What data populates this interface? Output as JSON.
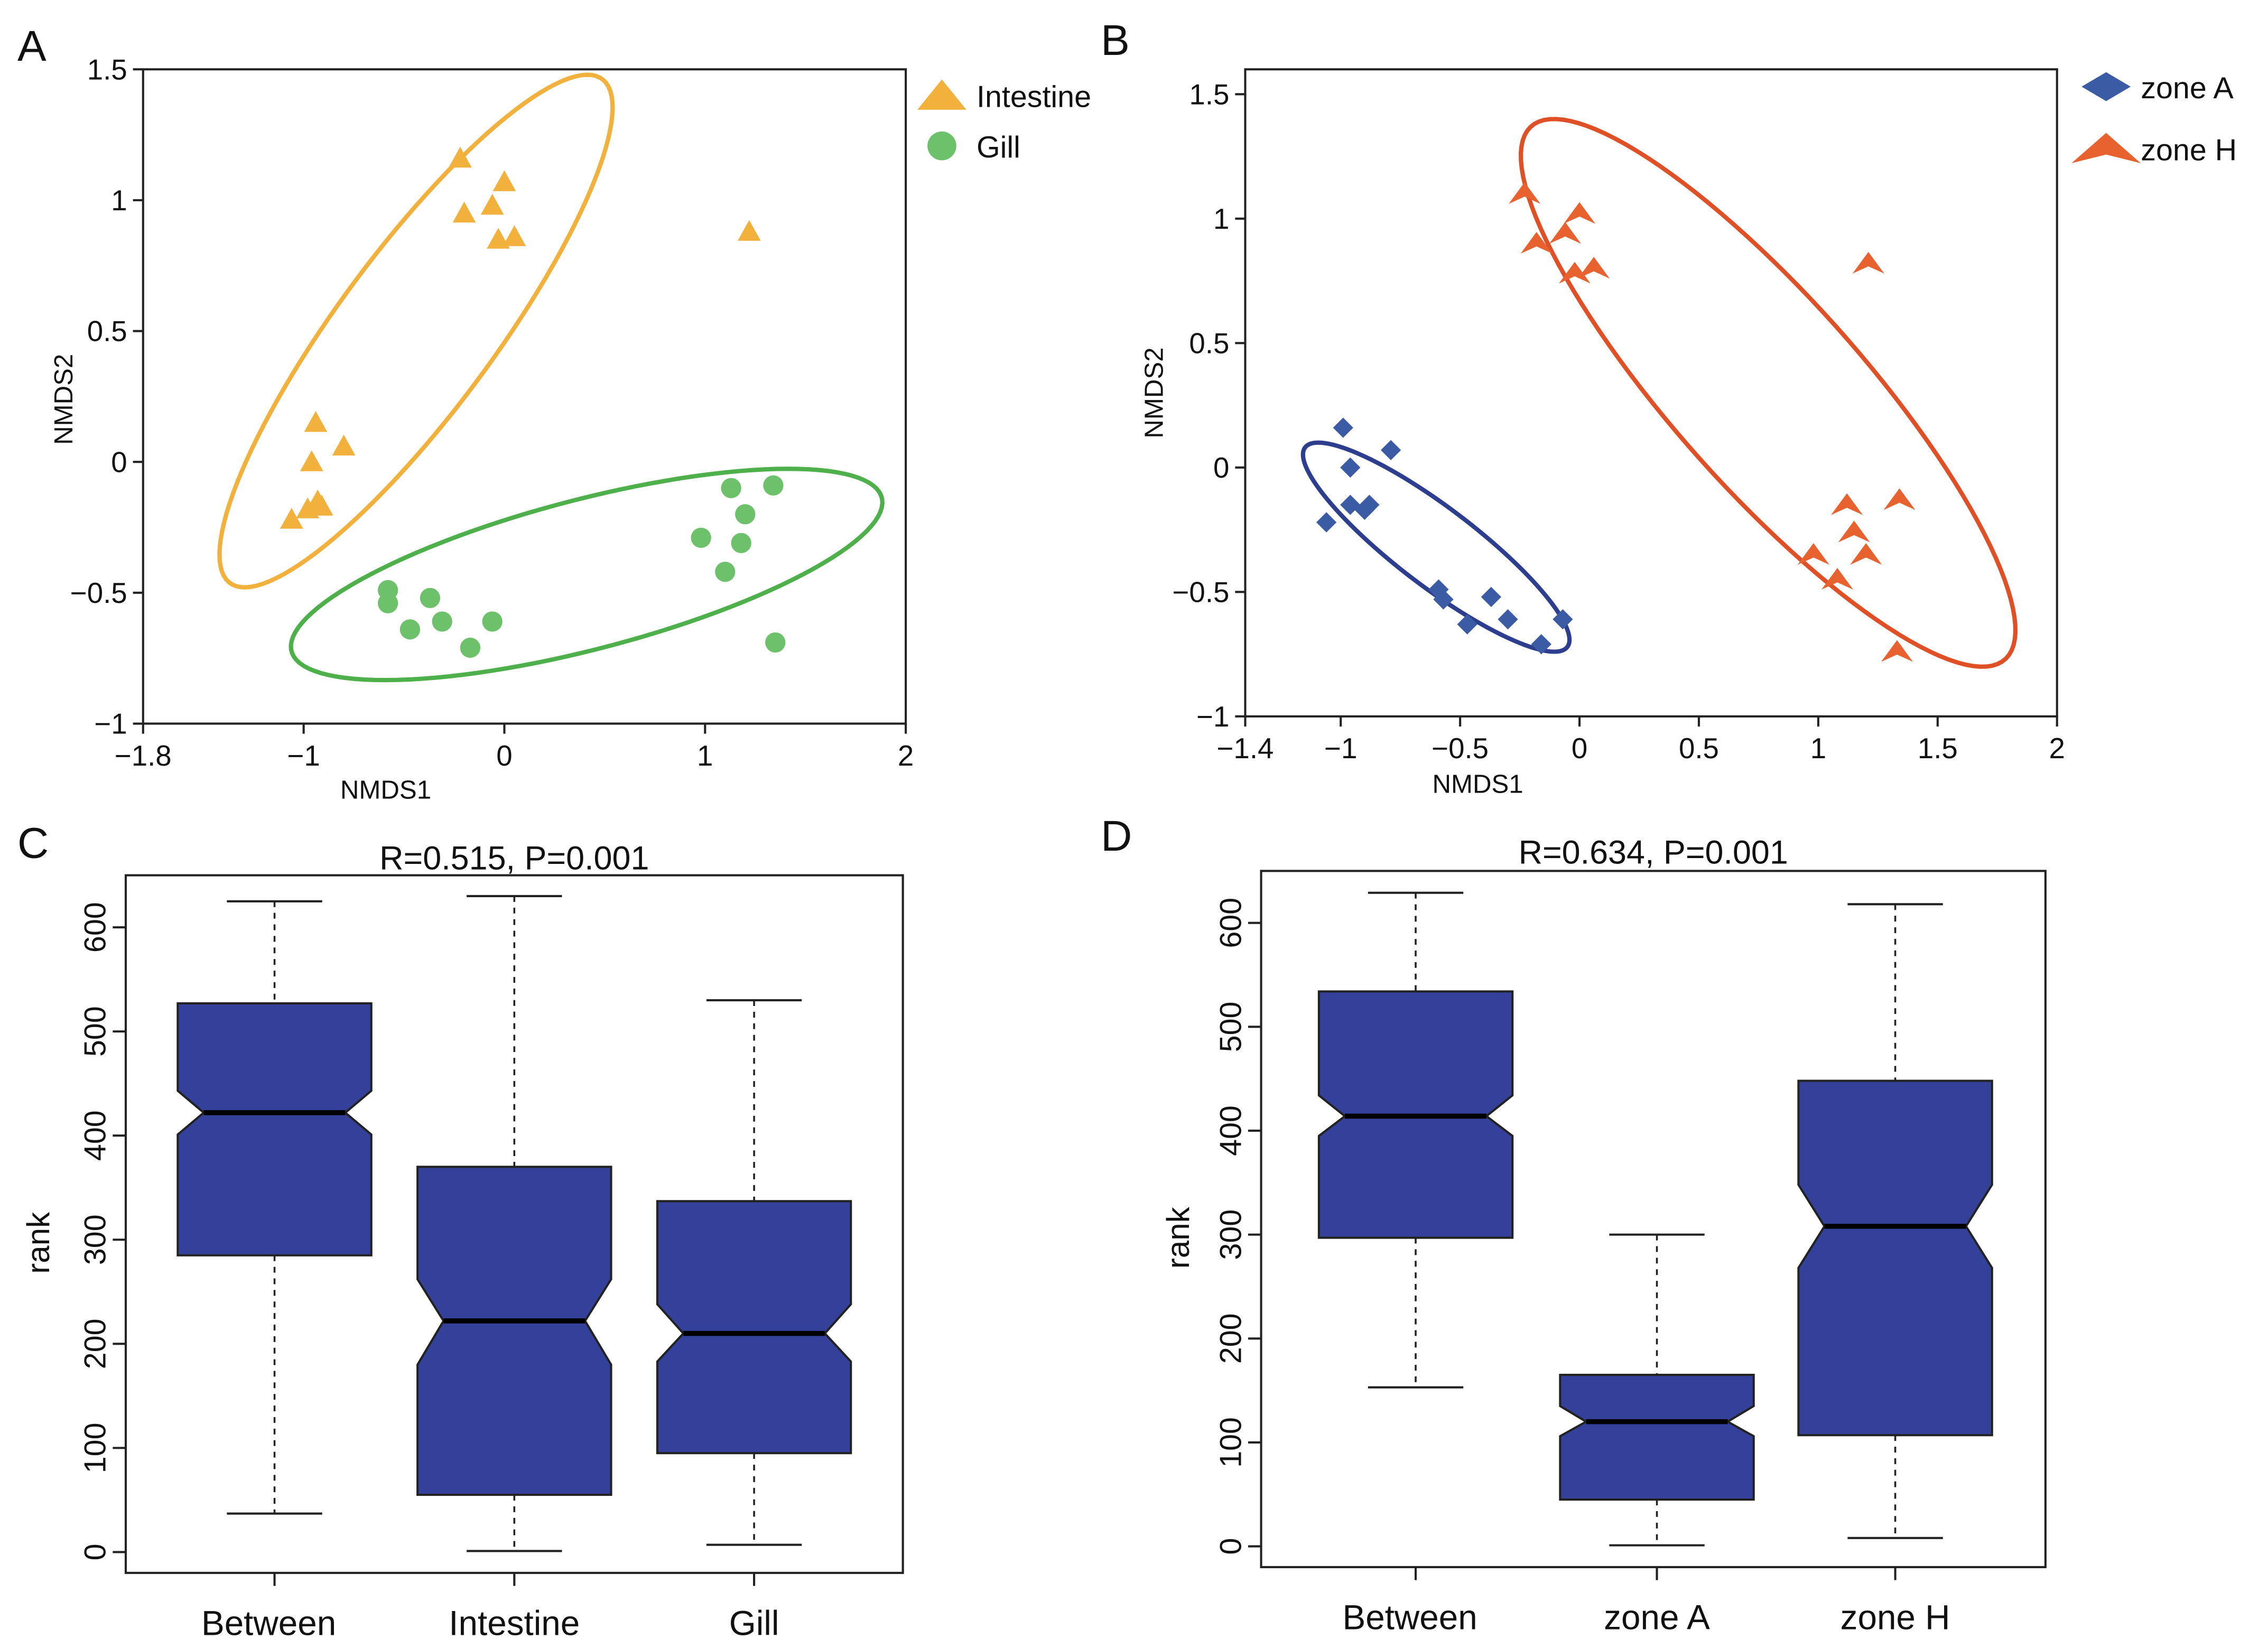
{
  "chart_data": [
    {
      "panel": "A",
      "type": "scatter",
      "title": "",
      "xlabel": "NMDS1",
      "ylabel": "NMDS2",
      "xlim": [
        -1.8,
        2
      ],
      "ylim": [
        -1,
        1.5
      ],
      "xticks": [
        "−1.8",
        "−1",
        "0",
        "1",
        "2"
      ],
      "xtick_values": [
        -1.8,
        -1,
        0,
        1,
        2
      ],
      "yticks": [
        "−1",
        "−0.5",
        "0",
        "0.5",
        "1",
        "1.5"
      ],
      "ytick_values": [
        -1,
        -0.5,
        0,
        0.5,
        1,
        1.5
      ],
      "legend": [
        "Intestine",
        "Gill"
      ],
      "legend_position": "outside-top-right",
      "series": [
        {
          "name": "Intestine",
          "marker": "triangle",
          "color": "#F2B03C",
          "points": [
            [
              -0.22,
              1.16
            ],
            [
              -0.2,
              0.95
            ],
            [
              -0.06,
              0.98
            ],
            [
              0,
              1.07
            ],
            [
              -0.03,
              0.85
            ],
            [
              0.05,
              0.86
            ],
            [
              1.22,
              0.88
            ],
            [
              -0.94,
              0.15
            ],
            [
              -0.96,
              0
            ],
            [
              -0.8,
              0.06
            ],
            [
              -1.06,
              -0.22
            ],
            [
              -0.98,
              -0.18
            ],
            [
              -0.93,
              -0.15
            ],
            [
              -0.91,
              -0.17
            ]
          ]
        },
        {
          "name": "Gill",
          "marker": "circle",
          "color": "#6CC16A",
          "points": [
            [
              -0.58,
              -0.49
            ],
            [
              -0.58,
              -0.54
            ],
            [
              -0.37,
              -0.52
            ],
            [
              -0.47,
              -0.64
            ],
            [
              -0.31,
              -0.61
            ],
            [
              -0.17,
              -0.71
            ],
            [
              -0.06,
              -0.61
            ],
            [
              0.98,
              -0.29
            ],
            [
              1.13,
              -0.1
            ],
            [
              1.34,
              -0.09
            ],
            [
              1.2,
              -0.2
            ],
            [
              1.18,
              -0.31
            ],
            [
              1.1,
              -0.42
            ],
            [
              1.35,
              -0.69
            ]
          ]
        }
      ],
      "ellipses": [
        {
          "name": "Intestine",
          "color": "#F2B03C",
          "center": [
            -0.44,
            0.5
          ],
          "rx": 1.34,
          "ry": 0.35,
          "angle_deg": 45
        },
        {
          "name": "Gill",
          "color": "#4DB04A",
          "center": [
            0.41,
            -0.43
          ],
          "rx": 1.5,
          "ry": 0.29,
          "angle_deg": 11
        }
      ]
    },
    {
      "panel": "B",
      "type": "scatter",
      "title": "",
      "xlabel": "NMDS1",
      "ylabel": "NMDS2",
      "xlim": [
        -1.4,
        2
      ],
      "ylim": [
        -1,
        1.6
      ],
      "xticks": [
        "−1.4",
        "−1",
        "−0.5",
        "0",
        "0.5",
        "1",
        "1.5",
        "2"
      ],
      "xtick_values": [
        -1.4,
        -1,
        -0.5,
        0,
        0.5,
        1,
        1.5,
        2
      ],
      "yticks": [
        "−1",
        "−0.5",
        "0",
        "0.5",
        "1",
        "1.5"
      ],
      "ytick_values": [
        -1,
        -0.5,
        0,
        0.5,
        1,
        1.5
      ],
      "legend": [
        "zone A",
        "zone H"
      ],
      "legend_position": "outside-top-right",
      "series": [
        {
          "name": "zone A",
          "marker": "diamond",
          "color": "#3B5BA5",
          "points": [
            [
              -0.99,
              0.16
            ],
            [
              -0.96,
              0
            ],
            [
              -0.96,
              -0.15
            ],
            [
              -1.06,
              -0.22
            ],
            [
              -0.9,
              -0.17
            ],
            [
              -0.88,
              -0.15
            ],
            [
              -0.79,
              0.07
            ],
            [
              -0.59,
              -0.49
            ],
            [
              -0.57,
              -0.53
            ],
            [
              -0.47,
              -0.63
            ],
            [
              -0.37,
              -0.52
            ],
            [
              -0.3,
              -0.61
            ],
            [
              -0.16,
              -0.71
            ],
            [
              -0.07,
              -0.61
            ]
          ]
        },
        {
          "name": "zone H",
          "marker": "arrowhead",
          "color": "#E8622F",
          "points": [
            [
              -0.23,
              1.1
            ],
            [
              -0.18,
              0.9
            ],
            [
              -0.06,
              0.94
            ],
            [
              0,
              1.02
            ],
            [
              -0.02,
              0.78
            ],
            [
              0.06,
              0.8
            ],
            [
              1.21,
              0.82
            ],
            [
              1.12,
              -0.15
            ],
            [
              1.34,
              -0.13
            ],
            [
              1.15,
              -0.26
            ],
            [
              0.98,
              -0.35
            ],
            [
              1.2,
              -0.35
            ],
            [
              1.08,
              -0.45
            ],
            [
              1.33,
              -0.74
            ]
          ]
        }
      ],
      "ellipses": [
        {
          "name": "zone A",
          "color": "#2E3E8F",
          "center": [
            -0.6,
            -0.32
          ],
          "rx": 0.68,
          "ry": 0.16,
          "angle_deg": -36
        },
        {
          "name": "zone H",
          "color": "#E05027",
          "center": [
            0.79,
            0.3
          ],
          "rx": 1.46,
          "ry": 0.39,
          "angle_deg": -47
        }
      ]
    },
    {
      "panel": "C",
      "type": "boxplot",
      "title": "R=0.515, P=0.001",
      "xlabel": "",
      "ylabel": "rank",
      "ylim": [
        -20,
        650
      ],
      "yticks": [
        "0",
        "100",
        "200",
        "300",
        "400",
        "500",
        "600"
      ],
      "ytick_values": [
        0,
        100,
        200,
        300,
        400,
        500,
        600
      ],
      "color": "#34419A",
      "categories": [
        "Between",
        "Intestine",
        "Gill"
      ],
      "boxes": [
        {
          "min": 37,
          "q1": 285,
          "notch_low": 401,
          "median": 422,
          "notch_high": 443,
          "q3": 527,
          "max": 625
        },
        {
          "min": 1,
          "q1": 55,
          "notch_low": 180,
          "median": 222,
          "notch_high": 262,
          "q3": 370,
          "max": 630
        },
        {
          "min": 7,
          "q1": 95,
          "notch_low": 183,
          "median": 210,
          "notch_high": 238,
          "q3": 337,
          "max": 530
        }
      ]
    },
    {
      "panel": "D",
      "type": "boxplot",
      "title": "R=0.634, P=0.001",
      "xlabel": "",
      "ylabel": "rank",
      "ylim": [
        -20,
        650
      ],
      "yticks": [
        "0",
        "100",
        "200",
        "300",
        "400",
        "500",
        "600"
      ],
      "ytick_values": [
        0,
        100,
        200,
        300,
        400,
        500,
        600
      ],
      "color": "#34419A",
      "categories": [
        "Between",
        "zone A",
        "zone H"
      ],
      "boxes": [
        {
          "min": 153,
          "q1": 297,
          "notch_low": 395,
          "median": 414,
          "notch_high": 434,
          "q3": 534,
          "max": 629
        },
        {
          "min": 1,
          "q1": 45,
          "notch_low": 106,
          "median": 120,
          "notch_high": 135,
          "q3": 165,
          "max": 300
        },
        {
          "min": 8,
          "q1": 107,
          "notch_low": 268,
          "median": 308,
          "notch_high": 348,
          "q3": 448,
          "max": 618
        }
      ]
    }
  ]
}
